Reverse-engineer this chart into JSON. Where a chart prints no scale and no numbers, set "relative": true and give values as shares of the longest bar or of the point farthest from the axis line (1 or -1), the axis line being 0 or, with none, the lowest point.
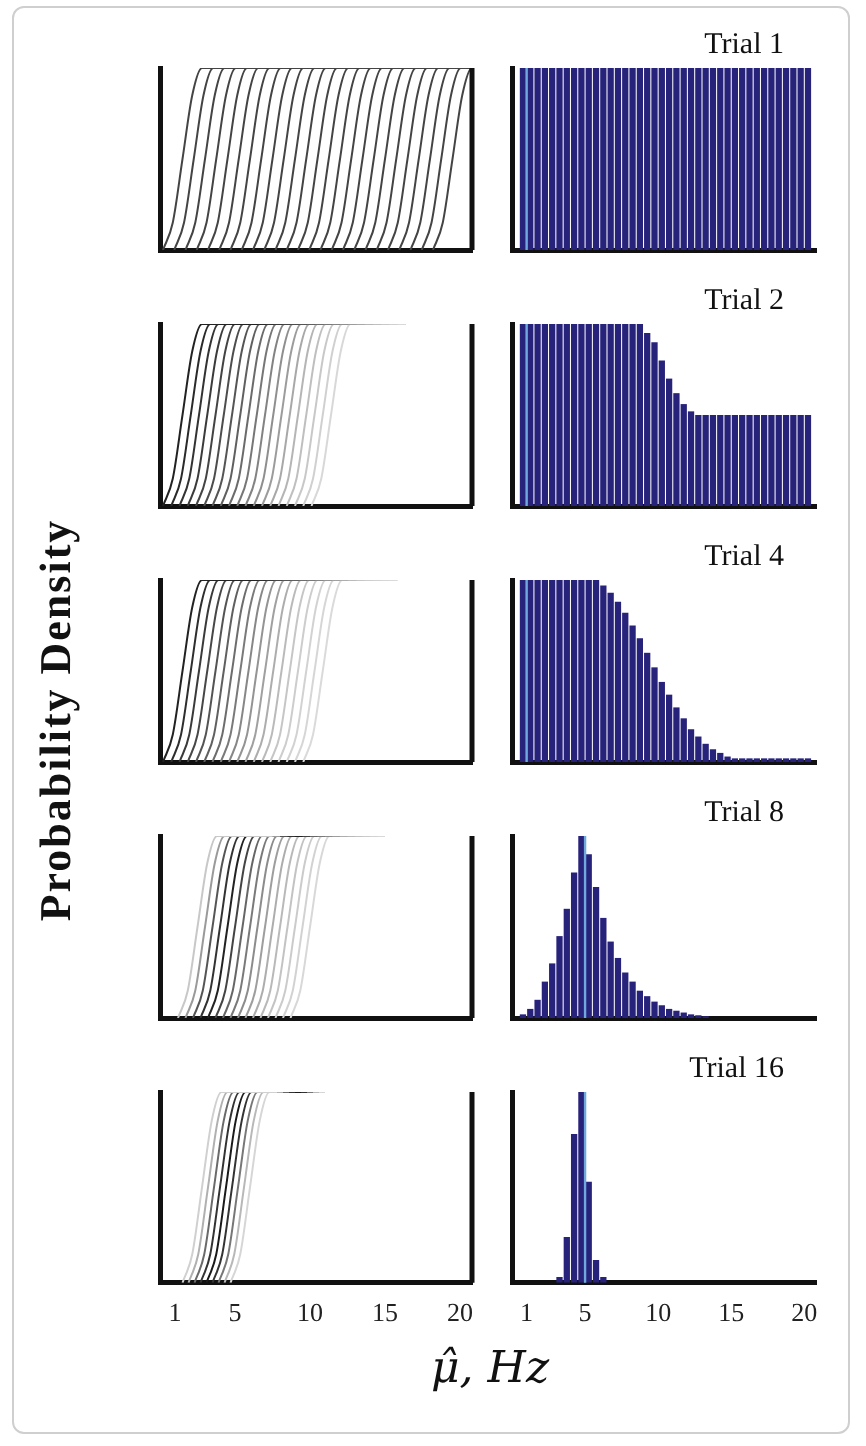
{
  "chart_data": [
    {
      "type": "line",
      "relative": true,
      "marker": "none",
      "xlim": [
        0,
        20.8
      ],
      "xticks": [
        1,
        5,
        10,
        15,
        20
      ],
      "tick_labels": false,
      "series": [
        {
          "color": "#444444",
          "x": [
            0.2,
            0.85,
            1.5,
            2.15,
            2.8,
            20.8
          ],
          "values": [
            0,
            0.15,
            0.5,
            0.85,
            1,
            1
          ]
        },
        {
          "color": "#444444",
          "x": [
            0.95,
            1.6,
            2.25,
            2.9,
            3.55,
            20.8
          ],
          "values": [
            0,
            0.15,
            0.5,
            0.85,
            1,
            1
          ]
        },
        {
          "color": "#444444",
          "x": [
            1.7,
            2.35,
            3,
            3.65,
            4.3,
            20.8
          ],
          "values": [
            0,
            0.15,
            0.5,
            0.85,
            1,
            1
          ]
        },
        {
          "color": "#444444",
          "x": [
            2.45,
            3.1,
            3.75,
            4.4,
            5.05,
            20.8
          ],
          "values": [
            0,
            0.15,
            0.5,
            0.85,
            1,
            1
          ]
        },
        {
          "color": "#444444",
          "x": [
            3.2,
            3.85,
            4.5,
            5.15,
            5.8,
            20.8
          ],
          "values": [
            0,
            0.15,
            0.5,
            0.85,
            1,
            1
          ]
        },
        {
          "color": "#444444",
          "x": [
            3.95,
            4.6,
            5.25,
            5.9,
            6.55,
            20.8
          ],
          "values": [
            0,
            0.15,
            0.5,
            0.85,
            1,
            1
          ]
        },
        {
          "color": "#444444",
          "x": [
            4.7,
            5.35,
            6,
            6.65,
            7.3,
            20.8
          ],
          "values": [
            0,
            0.15,
            0.5,
            0.85,
            1,
            1
          ]
        },
        {
          "color": "#444444",
          "x": [
            5.45,
            6.1,
            6.75,
            7.4,
            8.05,
            20.8
          ],
          "values": [
            0,
            0.15,
            0.5,
            0.85,
            1,
            1
          ]
        },
        {
          "color": "#444444",
          "x": [
            6.2,
            6.85,
            7.5,
            8.15,
            8.8,
            20.8
          ],
          "values": [
            0,
            0.15,
            0.5,
            0.85,
            1,
            1
          ]
        },
        {
          "color": "#444444",
          "x": [
            6.95,
            7.6,
            8.25,
            8.9,
            9.55,
            20.8
          ],
          "values": [
            0,
            0.15,
            0.5,
            0.85,
            1,
            1
          ]
        },
        {
          "color": "#444444",
          "x": [
            7.7,
            8.35,
            9,
            9.65,
            10.3,
            20.8
          ],
          "values": [
            0,
            0.15,
            0.5,
            0.85,
            1,
            1
          ]
        },
        {
          "color": "#444444",
          "x": [
            8.45,
            9.1,
            9.75,
            10.4,
            11.05,
            20.8
          ],
          "values": [
            0,
            0.15,
            0.5,
            0.85,
            1,
            1
          ]
        },
        {
          "color": "#444444",
          "x": [
            9.2,
            9.85,
            10.5,
            11.15,
            11.8,
            20.8
          ],
          "values": [
            0,
            0.15,
            0.5,
            0.85,
            1,
            1
          ]
        },
        {
          "color": "#444444",
          "x": [
            9.95,
            10.6,
            11.25,
            11.9,
            12.55,
            20.8
          ],
          "values": [
            0,
            0.15,
            0.5,
            0.85,
            1,
            1
          ]
        },
        {
          "color": "#444444",
          "x": [
            10.7,
            11.35,
            12,
            12.65,
            13.3,
            20.8
          ],
          "values": [
            0,
            0.15,
            0.5,
            0.85,
            1,
            1
          ]
        },
        {
          "color": "#444444",
          "x": [
            11.45,
            12.1,
            12.75,
            13.4,
            14.05,
            20.8
          ],
          "values": [
            0,
            0.15,
            0.5,
            0.85,
            1,
            1
          ]
        },
        {
          "color": "#444444",
          "x": [
            12.2,
            12.85,
            13.5,
            14.15,
            14.8,
            20.8
          ],
          "values": [
            0,
            0.15,
            0.5,
            0.85,
            1,
            1
          ]
        },
        {
          "color": "#444444",
          "x": [
            12.95,
            13.6,
            14.25,
            14.9,
            15.55,
            20.8
          ],
          "values": [
            0,
            0.15,
            0.5,
            0.85,
            1,
            1
          ]
        },
        {
          "color": "#444444",
          "x": [
            13.7,
            14.35,
            15,
            15.65,
            16.3,
            20.8
          ],
          "values": [
            0,
            0.15,
            0.5,
            0.85,
            1,
            1
          ]
        },
        {
          "color": "#444444",
          "x": [
            14.45,
            15.1,
            15.75,
            16.4,
            17.05,
            20.8
          ],
          "values": [
            0,
            0.15,
            0.5,
            0.85,
            1,
            1
          ]
        },
        {
          "color": "#444444",
          "x": [
            15.2,
            15.85,
            16.5,
            17.15,
            17.8,
            20.8
          ],
          "values": [
            0,
            0.15,
            0.5,
            0.85,
            1,
            1
          ]
        },
        {
          "color": "#444444",
          "x": [
            15.95,
            16.6,
            17.25,
            17.9,
            18.55,
            20.8
          ],
          "values": [
            0,
            0.15,
            0.5,
            0.85,
            1,
            1
          ]
        },
        {
          "color": "#444444",
          "x": [
            16.7,
            17.35,
            18,
            18.65,
            19.3,
            20.8
          ],
          "values": [
            0,
            0.15,
            0.5,
            0.85,
            1,
            1
          ]
        },
        {
          "color": "#444444",
          "x": [
            17.45,
            18.1,
            18.75,
            19.4,
            20.05,
            20.8
          ],
          "values": [
            0,
            0.15,
            0.5,
            0.85,
            1,
            1
          ]
        },
        {
          "color": "#444444",
          "x": [
            18.2,
            18.85,
            19.5,
            20.15,
            20.8,
            20.8
          ],
          "values": [
            0,
            0.15,
            0.5,
            0.85,
            1,
            1
          ]
        }
      ]
    },
    {
      "type": "bar",
      "relative": true,
      "color": "#27227a",
      "xlim": [
        0,
        20.8
      ],
      "xticks": [
        1,
        5,
        10,
        15,
        20
      ],
      "tick_labels": false,
      "annotations": [
        "Trial 1"
      ],
      "ref_lines": [
        {
          "axis": "x",
          "value": 1,
          "color": "#6fa8dc"
        }
      ],
      "x": [
        0.75,
        1.25,
        1.75,
        2.25,
        2.75,
        3.25,
        3.75,
        4.25,
        4.75,
        5.25,
        5.75,
        6.25,
        6.75,
        7.25,
        7.75,
        8.25,
        8.75,
        9.25,
        9.75,
        10.25,
        10.75,
        11.25,
        11.75,
        12.25,
        12.75,
        13.25,
        13.75,
        14.25,
        14.75,
        15.25,
        15.75,
        16.25,
        16.75,
        17.25,
        17.75,
        18.25,
        18.75,
        19.25,
        19.75,
        20.25
      ],
      "values": [
        1,
        1,
        1,
        1,
        1,
        1,
        1,
        1,
        1,
        1,
        1,
        1,
        1,
        1,
        1,
        1,
        1,
        1,
        1,
        1,
        1,
        1,
        1,
        1,
        1,
        1,
        1,
        1,
        1,
        1,
        1,
        1,
        1,
        1,
        1,
        1,
        1,
        1,
        1,
        1
      ]
    },
    {
      "type": "line",
      "relative": true,
      "marker": "none",
      "xlim": [
        0,
        20.8
      ],
      "xticks": [
        1,
        5,
        10,
        15,
        20
      ],
      "tick_labels": false,
      "series": [
        {
          "color": "#222222",
          "x": [
            0.2,
            0.85,
            1.5,
            2.15,
            2.8,
            6.5
          ],
          "values": [
            0,
            0.15,
            0.5,
            0.85,
            1,
            1
          ]
        },
        {
          "color": "#2a2a2a",
          "x": [
            0.75,
            1.4,
            2.05,
            2.7,
            3.35,
            7.05
          ],
          "values": [
            0,
            0.15,
            0.5,
            0.85,
            1,
            1
          ]
        },
        {
          "color": "#333333",
          "x": [
            1.3,
            1.95,
            2.6,
            3.25,
            3.9,
            7.6
          ],
          "values": [
            0,
            0.15,
            0.5,
            0.85,
            1,
            1
          ]
        },
        {
          "color": "#3b3b3b",
          "x": [
            1.85,
            2.5,
            3.15,
            3.8,
            4.45,
            8.15
          ],
          "values": [
            0,
            0.15,
            0.5,
            0.85,
            1,
            1
          ]
        },
        {
          "color": "#444444",
          "x": [
            2.4,
            3.05,
            3.7,
            4.35,
            5,
            8.7
          ],
          "values": [
            0,
            0.15,
            0.5,
            0.85,
            1,
            1
          ]
        },
        {
          "color": "#4d4d4d",
          "x": [
            2.95,
            3.6,
            4.25,
            4.9,
            5.55,
            9.25
          ],
          "values": [
            0,
            0.15,
            0.5,
            0.85,
            1,
            1
          ]
        },
        {
          "color": "#555555",
          "x": [
            3.5,
            4.15,
            4.8,
            5.45,
            6.1,
            9.8
          ],
          "values": [
            0,
            0.15,
            0.5,
            0.85,
            1,
            1
          ]
        },
        {
          "color": "#606060",
          "x": [
            4.05,
            4.7,
            5.35,
            6,
            6.65,
            10.35
          ],
          "values": [
            0,
            0.15,
            0.5,
            0.85,
            1,
            1
          ]
        },
        {
          "color": "#6b6b6b",
          "x": [
            4.6,
            5.25,
            5.9,
            6.55,
            7.2,
            10.9
          ],
          "values": [
            0,
            0.15,
            0.5,
            0.85,
            1,
            1
          ]
        },
        {
          "color": "#777777",
          "x": [
            5.15,
            5.8,
            6.45,
            7.1,
            7.75,
            11.45
          ],
          "values": [
            0,
            0.15,
            0.5,
            0.85,
            1,
            1
          ]
        },
        {
          "color": "#838383",
          "x": [
            5.7,
            6.35,
            7,
            7.65,
            8.3,
            12
          ],
          "values": [
            0,
            0.15,
            0.5,
            0.85,
            1,
            1
          ]
        },
        {
          "color": "#8f8f8f",
          "x": [
            6.25,
            6.9,
            7.55,
            8.2,
            8.85,
            12.55
          ],
          "values": [
            0,
            0.15,
            0.5,
            0.85,
            1,
            1
          ]
        },
        {
          "color": "#9c9c9c",
          "x": [
            6.8,
            7.45,
            8.1,
            8.75,
            9.4,
            13.1
          ],
          "values": [
            0,
            0.15,
            0.5,
            0.85,
            1,
            1
          ]
        },
        {
          "color": "#a8a8a8",
          "x": [
            7.35,
            8,
            8.65,
            9.3,
            9.95,
            13.65
          ],
          "values": [
            0,
            0.15,
            0.5,
            0.85,
            1,
            1
          ]
        },
        {
          "color": "#b5b5b5",
          "x": [
            7.9,
            8.55,
            9.2,
            9.85,
            10.5,
            14.2
          ],
          "values": [
            0,
            0.15,
            0.5,
            0.85,
            1,
            1
          ]
        },
        {
          "color": "#bfbfbf",
          "x": [
            8.45,
            9.1,
            9.75,
            10.4,
            11.05,
            14.75
          ],
          "values": [
            0,
            0.15,
            0.5,
            0.85,
            1,
            1
          ]
        },
        {
          "color": "#c8c8c8",
          "x": [
            9,
            9.65,
            10.3,
            10.95,
            11.6,
            15.3
          ],
          "values": [
            0,
            0.15,
            0.5,
            0.85,
            1,
            1
          ]
        },
        {
          "color": "#d0d0d0",
          "x": [
            9.55,
            10.2,
            10.85,
            11.5,
            12.15,
            15.85
          ],
          "values": [
            0,
            0.15,
            0.5,
            0.85,
            1,
            1
          ]
        },
        {
          "color": "#d8d8d8",
          "x": [
            10.1,
            10.75,
            11.4,
            12.05,
            12.7,
            16.4
          ],
          "values": [
            0,
            0.15,
            0.5,
            0.85,
            1,
            1
          ]
        }
      ]
    },
    {
      "type": "bar",
      "relative": true,
      "color": "#27227a",
      "xlim": [
        0,
        20.8
      ],
      "xticks": [
        1,
        5,
        10,
        15,
        20
      ],
      "tick_labels": false,
      "annotations": [
        "Trial 2"
      ],
      "ref_lines": [
        {
          "axis": "x",
          "value": 1,
          "color": "#6fa8dc"
        }
      ],
      "x": [
        0.75,
        1.25,
        1.75,
        2.25,
        2.75,
        3.25,
        3.75,
        4.25,
        4.75,
        5.25,
        5.75,
        6.25,
        6.75,
        7.25,
        7.75,
        8.25,
        8.75,
        9.25,
        9.75,
        10.25,
        10.75,
        11.25,
        11.75,
        12.25,
        12.75,
        13.25,
        13.75,
        14.25,
        14.75,
        15.25,
        15.75,
        16.25,
        16.75,
        17.25,
        17.75,
        18.25,
        18.75,
        19.25,
        19.75,
        20.25
      ],
      "values": [
        1,
        1,
        1,
        1,
        1,
        1,
        1,
        1,
        1,
        1,
        1,
        1,
        1,
        1,
        1,
        1,
        1,
        0.95,
        0.9,
        0.8,
        0.7,
        0.62,
        0.56,
        0.52,
        0.5,
        0.5,
        0.5,
        0.5,
        0.5,
        0.5,
        0.5,
        0.5,
        0.5,
        0.5,
        0.5,
        0.5,
        0.5,
        0.5,
        0.5,
        0.5
      ]
    },
    {
      "type": "line",
      "relative": true,
      "marker": "none",
      "xlim": [
        0,
        20.8
      ],
      "xticks": [
        1,
        5,
        10,
        15,
        20
      ],
      "tick_labels": false,
      "ylabel": "Probability Density",
      "series": [
        {
          "color": "#222222",
          "x": [
            0.2,
            0.85,
            1.5,
            2.15,
            2.8,
            6.5
          ],
          "values": [
            0,
            0.15,
            0.5,
            0.85,
            1,
            1
          ]
        },
        {
          "color": "#2e2e2e",
          "x": [
            0.75,
            1.4,
            2.05,
            2.7,
            3.35,
            7.05
          ],
          "values": [
            0,
            0.15,
            0.5,
            0.85,
            1,
            1
          ]
        },
        {
          "color": "#3a3a3a",
          "x": [
            1.3,
            1.95,
            2.6,
            3.25,
            3.9,
            7.6
          ],
          "values": [
            0,
            0.15,
            0.5,
            0.85,
            1,
            1
          ]
        },
        {
          "color": "#474747",
          "x": [
            1.85,
            2.5,
            3.15,
            3.8,
            4.45,
            8.15
          ],
          "values": [
            0,
            0.15,
            0.5,
            0.85,
            1,
            1
          ]
        },
        {
          "color": "#545454",
          "x": [
            2.4,
            3.05,
            3.7,
            4.35,
            5,
            8.7
          ],
          "values": [
            0,
            0.15,
            0.5,
            0.85,
            1,
            1
          ]
        },
        {
          "color": "#606060",
          "x": [
            2.95,
            3.6,
            4.25,
            4.9,
            5.55,
            9.25
          ],
          "values": [
            0,
            0.15,
            0.5,
            0.85,
            1,
            1
          ]
        },
        {
          "color": "#6d6d6d",
          "x": [
            3.5,
            4.15,
            4.8,
            5.45,
            6.1,
            9.8
          ],
          "values": [
            0,
            0.15,
            0.5,
            0.85,
            1,
            1
          ]
        },
        {
          "color": "#7a7a7a",
          "x": [
            4.05,
            4.7,
            5.35,
            6,
            6.65,
            10.35
          ],
          "values": [
            0,
            0.15,
            0.5,
            0.85,
            1,
            1
          ]
        },
        {
          "color": "#878787",
          "x": [
            4.6,
            5.25,
            5.9,
            6.55,
            7.2,
            10.9
          ],
          "values": [
            0,
            0.15,
            0.5,
            0.85,
            1,
            1
          ]
        },
        {
          "color": "#949494",
          "x": [
            5.15,
            5.8,
            6.45,
            7.1,
            7.75,
            11.45
          ],
          "values": [
            0,
            0.15,
            0.5,
            0.85,
            1,
            1
          ]
        },
        {
          "color": "#a0a0a0",
          "x": [
            5.7,
            6.35,
            7,
            7.65,
            8.3,
            12
          ],
          "values": [
            0,
            0.15,
            0.5,
            0.85,
            1,
            1
          ]
        },
        {
          "color": "#adadad",
          "x": [
            6.25,
            6.9,
            7.55,
            8.2,
            8.85,
            12.55
          ],
          "values": [
            0,
            0.15,
            0.5,
            0.85,
            1,
            1
          ]
        },
        {
          "color": "#bababa",
          "x": [
            6.8,
            7.45,
            8.1,
            8.75,
            9.4,
            13.1
          ],
          "values": [
            0,
            0.15,
            0.5,
            0.85,
            1,
            1
          ]
        },
        {
          "color": "#c6c6c6",
          "x": [
            7.35,
            8,
            8.65,
            9.3,
            9.95,
            13.65
          ],
          "values": [
            0,
            0.15,
            0.5,
            0.85,
            1,
            1
          ]
        },
        {
          "color": "#cdcdcd",
          "x": [
            7.9,
            8.55,
            9.2,
            9.85,
            10.5,
            14.2
          ],
          "values": [
            0,
            0.15,
            0.5,
            0.85,
            1,
            1
          ]
        },
        {
          "color": "#d2d2d2",
          "x": [
            8.45,
            9.1,
            9.75,
            10.4,
            11.05,
            14.75
          ],
          "values": [
            0,
            0.15,
            0.5,
            0.85,
            1,
            1
          ]
        },
        {
          "color": "#d6d6d6",
          "x": [
            9,
            9.65,
            10.3,
            10.95,
            11.6,
            15.3
          ],
          "values": [
            0,
            0.15,
            0.5,
            0.85,
            1,
            1
          ]
        },
        {
          "color": "#dadada",
          "x": [
            9.55,
            10.2,
            10.85,
            11.5,
            12.15,
            15.85
          ],
          "values": [
            0,
            0.15,
            0.5,
            0.85,
            1,
            1
          ]
        }
      ]
    },
    {
      "type": "bar",
      "relative": true,
      "color": "#27227a",
      "xlim": [
        0,
        20.8
      ],
      "xticks": [
        1,
        5,
        10,
        15,
        20
      ],
      "tick_labels": false,
      "annotations": [
        "Trial 4"
      ],
      "ref_lines": [
        {
          "axis": "x",
          "value": 1,
          "color": "#6fa8dc"
        }
      ],
      "x": [
        0.75,
        1.25,
        1.75,
        2.25,
        2.75,
        3.25,
        3.75,
        4.25,
        4.75,
        5.25,
        5.75,
        6.25,
        6.75,
        7.25,
        7.75,
        8.25,
        8.75,
        9.25,
        9.75,
        10.25,
        10.75,
        11.25,
        11.75,
        12.25,
        12.75,
        13.25,
        13.75,
        14.25,
        14.75,
        15.25,
        15.75,
        16.25,
        16.75,
        17.25,
        17.75,
        18.25,
        18.75,
        19.25,
        19.75,
        20.25
      ],
      "values": [
        1,
        1,
        1,
        1,
        1,
        1,
        1,
        1,
        1,
        1,
        1,
        0.97,
        0.93,
        0.88,
        0.82,
        0.75,
        0.68,
        0.6,
        0.52,
        0.44,
        0.37,
        0.3,
        0.24,
        0.18,
        0.14,
        0.1,
        0.07,
        0.05,
        0.03,
        0.02,
        0.02,
        0.02,
        0.02,
        0.02,
        0.02,
        0.02,
        0.02,
        0.02,
        0.02,
        0.02
      ]
    },
    {
      "type": "line",
      "relative": true,
      "marker": "none",
      "xlim": [
        0,
        20.8
      ],
      "xticks": [
        1,
        5,
        10,
        15,
        20
      ],
      "tick_labels": false,
      "series": [
        {
          "color": "#c8c8c8",
          "x": [
            1.2,
            1.85,
            2.5,
            3.15,
            3.8,
            7.5
          ],
          "values": [
            0,
            0.15,
            0.5,
            0.85,
            1,
            1
          ]
        },
        {
          "color": "#9a9a9a",
          "x": [
            1.7,
            2.35,
            3,
            3.65,
            4.3,
            8
          ],
          "values": [
            0,
            0.15,
            0.5,
            0.85,
            1,
            1
          ]
        },
        {
          "color": "#555555",
          "x": [
            2.2,
            2.85,
            3.5,
            4.15,
            4.8,
            8.5
          ],
          "values": [
            0,
            0.15,
            0.5,
            0.85,
            1,
            1
          ]
        },
        {
          "color": "#333333",
          "x": [
            2.7,
            3.35,
            4,
            4.65,
            5.3,
            9
          ],
          "values": [
            0,
            0.15,
            0.5,
            0.85,
            1,
            1
          ]
        },
        {
          "color": "#222222",
          "x": [
            3.2,
            3.85,
            4.5,
            5.15,
            5.8,
            9.5
          ],
          "values": [
            0,
            0.15,
            0.5,
            0.85,
            1,
            1
          ]
        },
        {
          "color": "#444444",
          "x": [
            3.7,
            4.35,
            5,
            5.65,
            6.3,
            10
          ],
          "values": [
            0,
            0.15,
            0.5,
            0.85,
            1,
            1
          ]
        },
        {
          "color": "#666666",
          "x": [
            4.2,
            4.85,
            5.5,
            6.15,
            6.8,
            10.5
          ],
          "values": [
            0,
            0.15,
            0.5,
            0.85,
            1,
            1
          ]
        },
        {
          "color": "#7a7a7a",
          "x": [
            4.7,
            5.35,
            6,
            6.65,
            7.3,
            11
          ],
          "values": [
            0,
            0.15,
            0.5,
            0.85,
            1,
            1
          ]
        },
        {
          "color": "#8c8c8c",
          "x": [
            5.2,
            5.85,
            6.5,
            7.15,
            7.8,
            11.5
          ],
          "values": [
            0,
            0.15,
            0.5,
            0.85,
            1,
            1
          ]
        },
        {
          "color": "#9e9e9e",
          "x": [
            5.7,
            6.35,
            7,
            7.65,
            8.3,
            12
          ],
          "values": [
            0,
            0.15,
            0.5,
            0.85,
            1,
            1
          ]
        },
        {
          "color": "#adadad",
          "x": [
            6.2,
            6.85,
            7.5,
            8.15,
            8.8,
            12.5
          ],
          "values": [
            0,
            0.15,
            0.5,
            0.85,
            1,
            1
          ]
        },
        {
          "color": "#b9b9b9",
          "x": [
            6.7,
            7.35,
            8,
            8.65,
            9.3,
            13
          ],
          "values": [
            0,
            0.15,
            0.5,
            0.85,
            1,
            1
          ]
        },
        {
          "color": "#c3c3c3",
          "x": [
            7.2,
            7.85,
            8.5,
            9.15,
            9.8,
            13.5
          ],
          "values": [
            0,
            0.15,
            0.5,
            0.85,
            1,
            1
          ]
        },
        {
          "color": "#cbcbcb",
          "x": [
            7.7,
            8.35,
            9,
            9.65,
            10.3,
            14
          ],
          "values": [
            0,
            0.15,
            0.5,
            0.85,
            1,
            1
          ]
        },
        {
          "color": "#d2d2d2",
          "x": [
            8.2,
            8.85,
            9.5,
            10.15,
            10.8,
            14.5
          ],
          "values": [
            0,
            0.15,
            0.5,
            0.85,
            1,
            1
          ]
        },
        {
          "color": "#d8d8d8",
          "x": [
            8.7,
            9.35,
            10,
            10.65,
            11.3,
            15
          ],
          "values": [
            0,
            0.15,
            0.5,
            0.85,
            1,
            1
          ]
        }
      ]
    },
    {
      "type": "bar",
      "relative": true,
      "color": "#27227a",
      "xlim": [
        0,
        20.8
      ],
      "xticks": [
        1,
        5,
        10,
        15,
        20
      ],
      "tick_labels": false,
      "annotations": [
        "Trial 8"
      ],
      "ref_lines": [
        {
          "axis": "x",
          "value": 5,
          "color": "#6fa8dc"
        }
      ],
      "x": [
        0.75,
        1.25,
        1.75,
        2.25,
        2.75,
        3.25,
        3.75,
        4.25,
        4.75,
        5.25,
        5.75,
        6.25,
        6.75,
        7.25,
        7.75,
        8.25,
        8.75,
        9.25,
        9.75,
        10.25,
        10.75,
        11.25,
        11.75,
        12.25,
        12.75,
        13.25
      ],
      "values": [
        0.02,
        0.05,
        0.1,
        0.2,
        0.3,
        0.45,
        0.6,
        0.8,
        1,
        0.9,
        0.72,
        0.55,
        0.42,
        0.33,
        0.25,
        0.2,
        0.15,
        0.12,
        0.09,
        0.07,
        0.05,
        0.04,
        0.03,
        0.02,
        0.015,
        0.01
      ]
    },
    {
      "type": "line",
      "relative": true,
      "marker": "none",
      "xlim": [
        0,
        20.8
      ],
      "xticks": [
        1,
        5,
        10,
        15,
        20
      ],
      "tick_labels": "x",
      "xlabel": "μ̂, Hz",
      "series": [
        {
          "color": "#d0d0d0",
          "x": [
            1.5,
            2.15,
            2.8,
            3.45,
            4.1,
            7.8
          ],
          "values": [
            0,
            0.15,
            0.5,
            0.85,
            1,
            1
          ]
        },
        {
          "color": "#b0b0b0",
          "x": [
            1.9,
            2.55,
            3.2,
            3.85,
            4.5,
            8.2
          ],
          "values": [
            0,
            0.15,
            0.5,
            0.85,
            1,
            1
          ]
        },
        {
          "color": "#6a6a6a",
          "x": [
            2.3,
            2.95,
            3.6,
            4.25,
            4.9,
            8.6
          ],
          "values": [
            0,
            0.15,
            0.5,
            0.85,
            1,
            1
          ]
        },
        {
          "color": "#333333",
          "x": [
            2.7,
            3.35,
            4,
            4.65,
            5.3,
            9
          ],
          "values": [
            0,
            0.15,
            0.5,
            0.85,
            1,
            1
          ]
        },
        {
          "color": "#1a1a1a",
          "x": [
            3.1,
            3.75,
            4.4,
            5.05,
            5.7,
            9.4
          ],
          "values": [
            0,
            0.15,
            0.5,
            0.85,
            1,
            1
          ]
        },
        {
          "color": "#333333",
          "x": [
            3.5,
            4.15,
            4.8,
            5.45,
            6.1,
            9.8
          ],
          "values": [
            0,
            0.15,
            0.5,
            0.85,
            1,
            1
          ]
        },
        {
          "color": "#777777",
          "x": [
            3.9,
            4.55,
            5.2,
            5.85,
            6.5,
            10.2
          ],
          "values": [
            0,
            0.15,
            0.5,
            0.85,
            1,
            1
          ]
        },
        {
          "color": "#b8b8b8",
          "x": [
            4.3,
            4.95,
            5.6,
            6.25,
            6.9,
            10.6
          ],
          "values": [
            0,
            0.15,
            0.5,
            0.85,
            1,
            1
          ]
        },
        {
          "color": "#d6d6d6",
          "x": [
            4.7,
            5.35,
            6,
            6.65,
            7.3,
            11
          ],
          "values": [
            0,
            0.15,
            0.5,
            0.85,
            1,
            1
          ]
        }
      ]
    },
    {
      "type": "bar",
      "relative": true,
      "color": "#27227a",
      "xlim": [
        0,
        20.8
      ],
      "xticks": [
        1,
        5,
        10,
        15,
        20
      ],
      "tick_labels": "x",
      "annotations": [
        "Trial 16"
      ],
      "ref_lines": [
        {
          "axis": "x",
          "value": 5,
          "color": "#6fa8dc"
        }
      ],
      "x": [
        3.25,
        3.75,
        4.25,
        4.75,
        5.25,
        5.75,
        6.25
      ],
      "values": [
        0.03,
        0.24,
        0.78,
        1,
        0.53,
        0.12,
        0.03
      ]
    }
  ]
}
